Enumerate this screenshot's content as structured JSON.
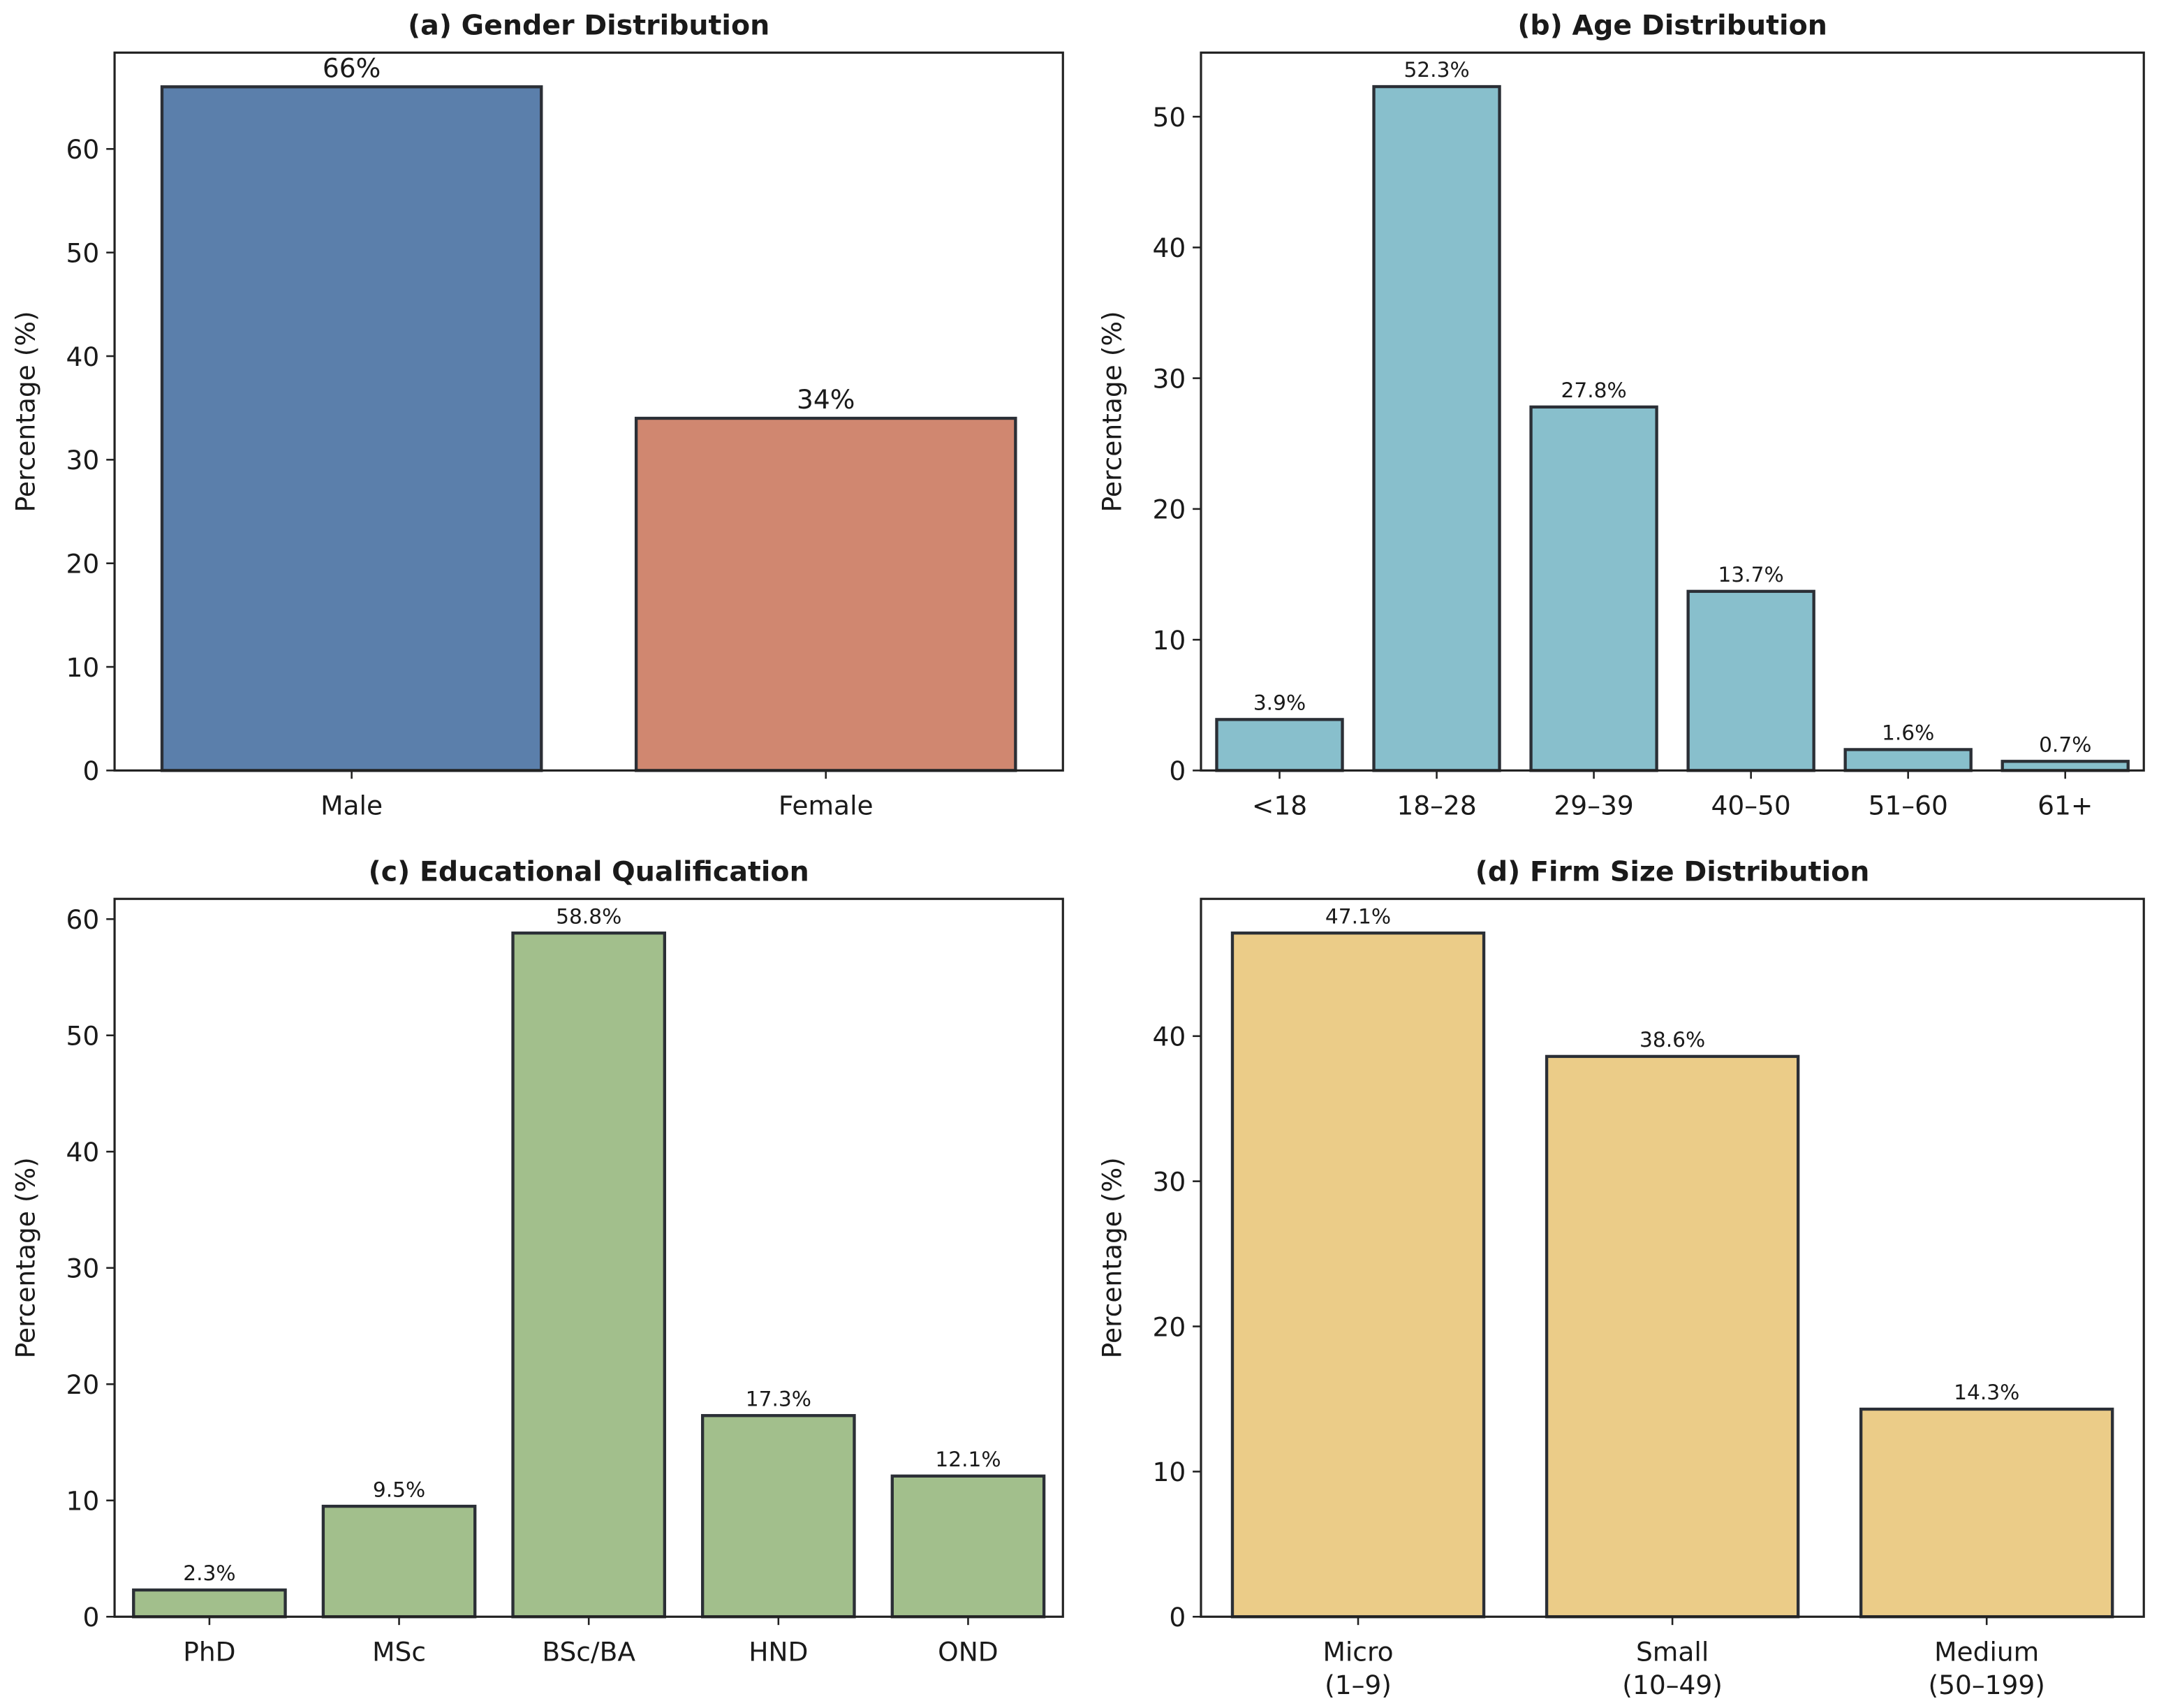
{
  "chart_data": [
    {
      "type": "bar",
      "title": "(a) Gender Distribution",
      "y_label": "Percentage (%)",
      "categories": [
        "Male",
        "Female"
      ],
      "values": [
        66,
        34
      ],
      "value_labels": [
        "66%",
        "34%"
      ],
      "colors": [
        "#5b7fab",
        "#d08770"
      ],
      "edge_color": "#2b2f36",
      "ylim": [
        0,
        69.3
      ],
      "yticks": [
        0,
        10,
        20,
        30,
        40,
        50,
        60
      ]
    },
    {
      "type": "bar",
      "title": "(b) Age Distribution",
      "y_label": "Percentage (%)",
      "categories": [
        "<18",
        "18–28",
        "29–39",
        "40–50",
        "51–60",
        "61+"
      ],
      "values": [
        3.9,
        52.3,
        27.8,
        13.7,
        1.6,
        0.7
      ],
      "value_labels": [
        "3.9%",
        "52.3%",
        "27.8%",
        "13.7%",
        "1.6%",
        "0.7%"
      ],
      "color": "#88bfcc",
      "edge_color": "#2b2f36",
      "ylim": [
        0,
        54.9
      ],
      "yticks": [
        0,
        10,
        20,
        30,
        40,
        50
      ]
    },
    {
      "type": "bar",
      "title": "(c) Educational Qualification",
      "y_label": "Percentage (%)",
      "categories": [
        "PhD",
        "MSc",
        "BSc/BA",
        "HND",
        "OND"
      ],
      "values": [
        2.3,
        9.5,
        58.8,
        17.3,
        12.1
      ],
      "value_labels": [
        "2.3%",
        "9.5%",
        "58.8%",
        "17.3%",
        "12.1%"
      ],
      "color": "#a2bf8c",
      "edge_color": "#2b2f36",
      "ylim": [
        0,
        61.74
      ],
      "yticks": [
        0,
        10,
        20,
        30,
        40,
        50,
        60
      ]
    },
    {
      "type": "bar",
      "title": "(d) Firm Size Distribution",
      "y_label": "Percentage (%)",
      "categories": [
        [
          "Micro",
          "(1–9)"
        ],
        [
          "Small",
          "(10–49)"
        ],
        [
          "Medium",
          "(50–199)"
        ]
      ],
      "values": [
        47.1,
        38.6,
        14.3
      ],
      "value_labels": [
        "47.1%",
        "38.6%",
        "14.3%"
      ],
      "color": "#ebcc88",
      "edge_color": "#2b2f36",
      "ylim": [
        0,
        49.455
      ],
      "yticks": [
        0,
        10,
        20,
        30,
        40
      ]
    }
  ]
}
